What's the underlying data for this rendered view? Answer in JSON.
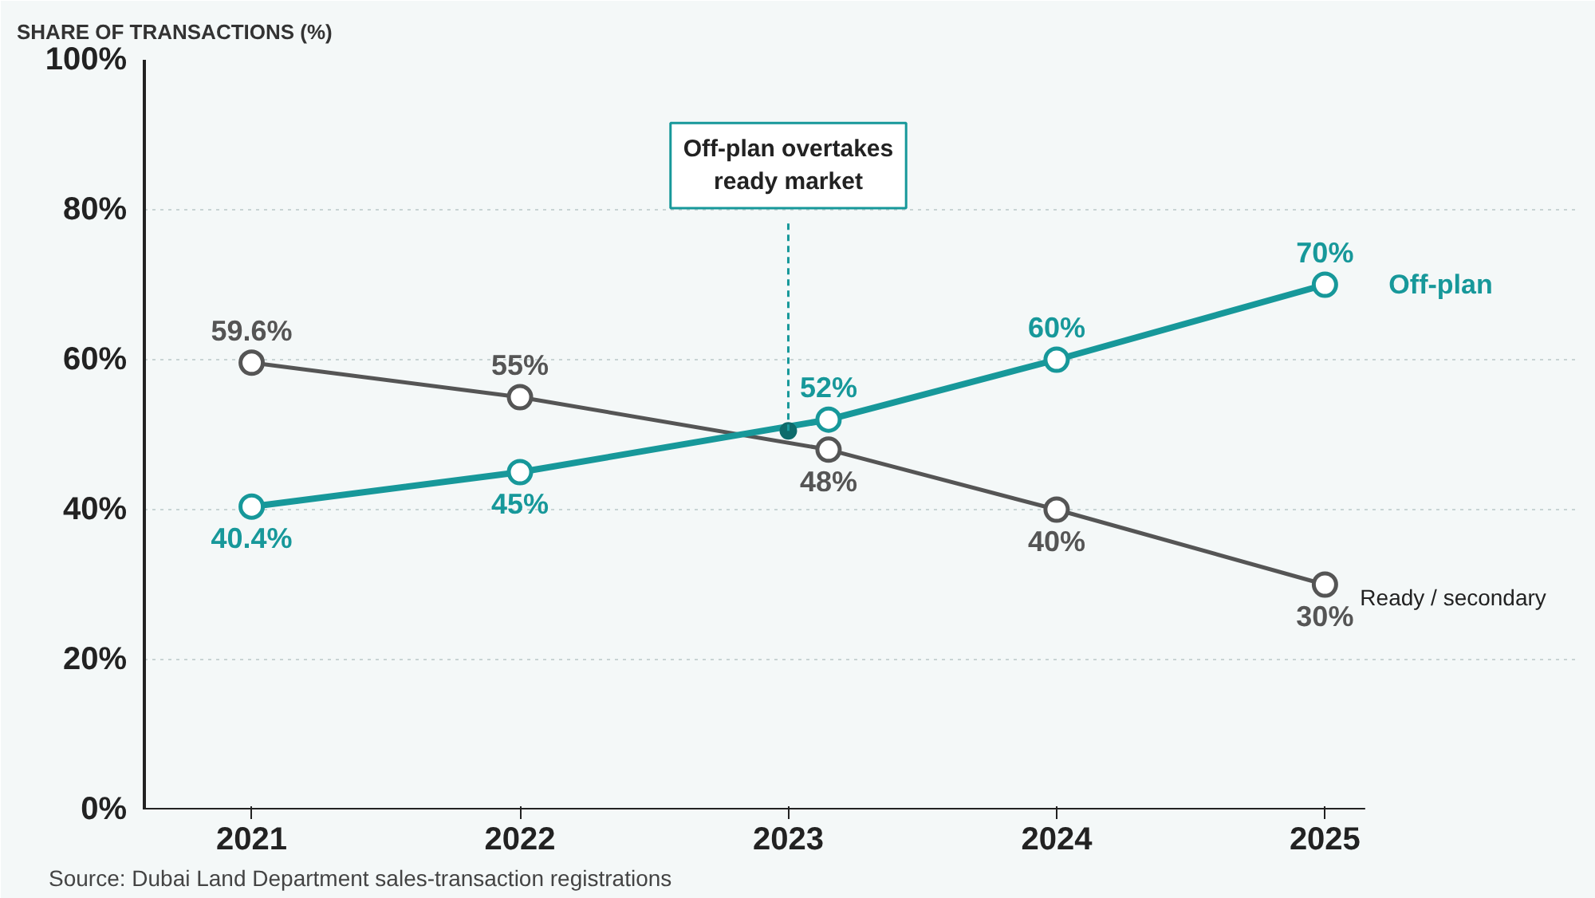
{
  "chart_data": {
    "type": "line",
    "ylabel": "SHARE OF TRANSACTIONS (%)",
    "x": [
      2021,
      2022,
      2023.15,
      2024,
      2025
    ],
    "series": [
      {
        "name": "Ready / secondary",
        "color": "#555555",
        "values": [
          59.6,
          55,
          48,
          40,
          30
        ],
        "value_labels": [
          "59.6%",
          "55%",
          "48%",
          "40%",
          "30%"
        ]
      },
      {
        "name": "Off-plan",
        "color": "#17989a",
        "values": [
          40.4,
          45,
          52,
          60,
          70
        ],
        "value_labels": [
          "40.4%",
          "45%",
          "52%",
          "60%",
          "70%"
        ]
      }
    ],
    "xlim": [
      2020.6,
      2025.15
    ],
    "xticks": [
      2021,
      2022,
      2023,
      2024,
      2025
    ],
    "ylim": [
      0,
      100
    ],
    "yticks": [
      {
        "value": 0,
        "label": "0%"
      },
      {
        "value": 20,
        "label": "20%"
      },
      {
        "value": 40,
        "label": "40%"
      },
      {
        "value": 60,
        "label": "60%"
      },
      {
        "value": 80,
        "label": "80%"
      },
      {
        "value": 100,
        "label": "100%"
      }
    ],
    "grid": "y",
    "marker": "circle",
    "line_style": "solid",
    "annotations": [
      {
        "text": "Off-plan overtakes ready market",
        "x": 2023,
        "y": 50.5
      },
      "Source: Dubai Land Department sales-transaction registrations"
    ]
  }
}
